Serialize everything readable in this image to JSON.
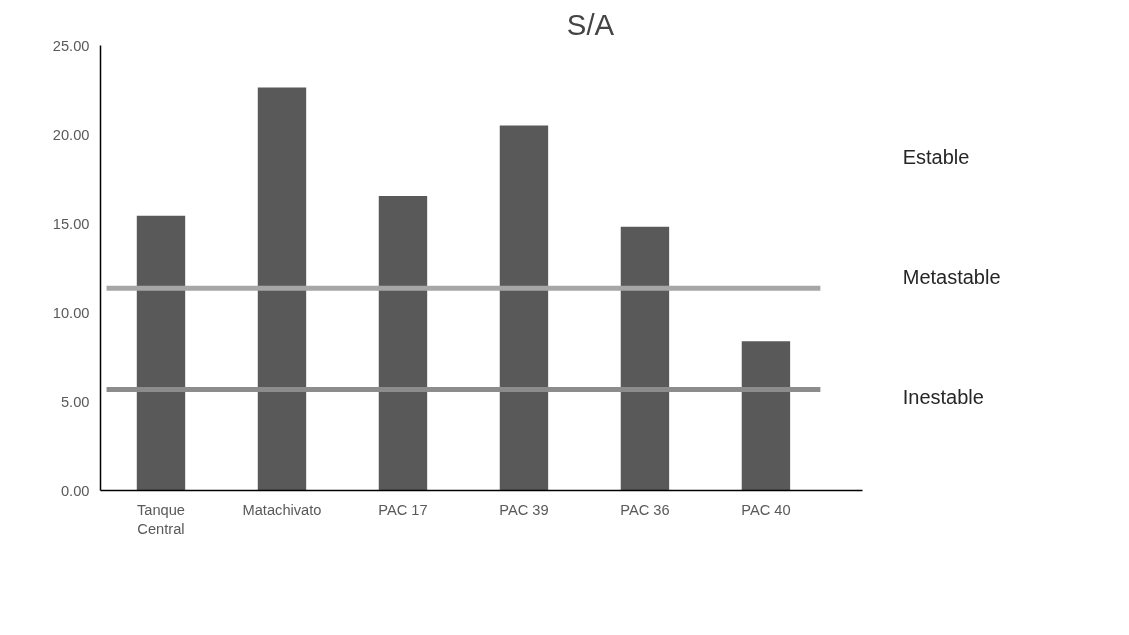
{
  "chart_data": {
    "type": "bar",
    "title": "S/A",
    "categories": [
      "Tanque Central",
      "Matachivato",
      "PAC 17",
      "PAC 39",
      "PAC 36",
      "PAC 40"
    ],
    "values": [
      15.44,
      22.64,
      16.55,
      20.5,
      14.82,
      8.38
    ],
    "color": "#595959",
    "ylim": [
      0,
      25
    ],
    "yticks": [
      {
        "value": 0,
        "label": "0.00"
      },
      {
        "value": 5,
        "label": "5.00"
      },
      {
        "value": 10,
        "label": "10.00"
      },
      {
        "value": 15,
        "label": "15.00"
      },
      {
        "value": 20,
        "label": "20.00"
      },
      {
        "value": 25,
        "label": "25.00"
      }
    ],
    "ref_lines": [
      {
        "axis": "y",
        "value": 11.36,
        "color": "#a6a6a6"
      },
      {
        "axis": "y",
        "value": 5.68,
        "color": "#8c8c8c"
      }
    ],
    "annotations": [
      "Estable",
      "Metastable",
      "Inestable"
    ],
    "grid": false
  }
}
